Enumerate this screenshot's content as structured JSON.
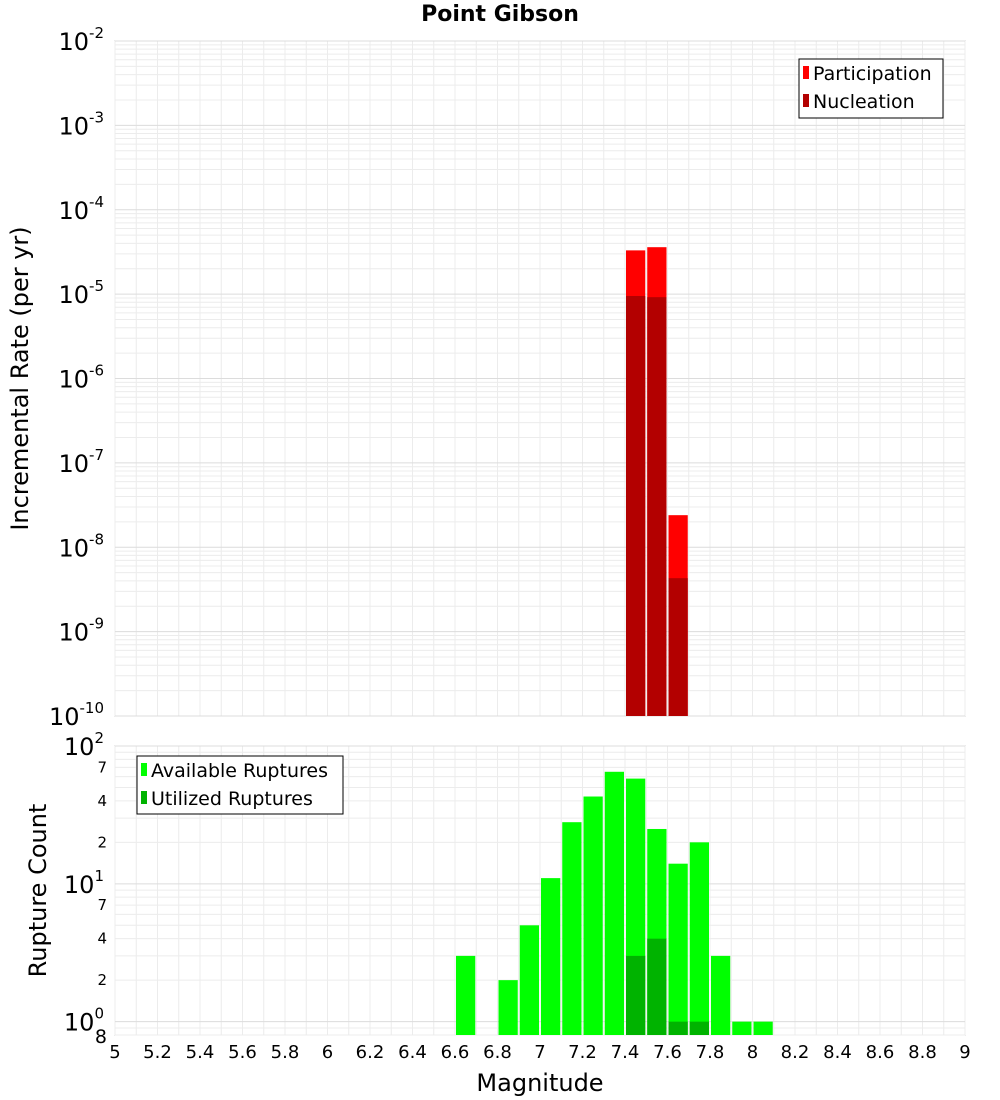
{
  "chart_data": [
    {
      "type": "bar",
      "title": "Point Gibson",
      "xlabel": "",
      "ylabel": "Incremental Rate (per yr)",
      "xlim": [
        5,
        9
      ],
      "ylim": [
        1e-10,
        0.01
      ],
      "yscale": "log",
      "y_tick_labels": [
        {
          "base": "10",
          "exp": "-10"
        },
        {
          "base": "10",
          "exp": "-9"
        },
        {
          "base": "10",
          "exp": "-8"
        },
        {
          "base": "10",
          "exp": "-7"
        },
        {
          "base": "10",
          "exp": "-6"
        },
        {
          "base": "10",
          "exp": "-5"
        },
        {
          "base": "10",
          "exp": "-4"
        },
        {
          "base": "10",
          "exp": "-3"
        },
        {
          "base": "10",
          "exp": "-2"
        }
      ],
      "grid": true,
      "legend_position": "top-right",
      "bar_width": 0.1,
      "series": [
        {
          "name": "Participation",
          "color": "#ff0000",
          "x": [
            7.45,
            7.55,
            7.65
          ],
          "values": [
            3.3e-05,
            3.6e-05,
            2.4e-08
          ]
        },
        {
          "name": "Nucleation",
          "color": "#b30000",
          "x": [
            7.45,
            7.55,
            7.65
          ],
          "values": [
            9.5e-06,
            9.2e-06,
            4.3e-09
          ]
        }
      ]
    },
    {
      "type": "bar",
      "title": "",
      "xlabel": "Magnitude",
      "ylabel": "Rupture Count",
      "xlim": [
        5,
        9
      ],
      "ylim": [
        0.8,
        100
      ],
      "yscale": "log",
      "x_tick_labels": [
        "5",
        "5.2",
        "5.4",
        "5.6",
        "5.8",
        "6",
        "6.2",
        "6.4",
        "6.6",
        "6.8",
        "7",
        "7.2",
        "7.4",
        "7.6",
        "7.8",
        "8",
        "8.2",
        "8.4",
        "8.6",
        "8.8",
        "9"
      ],
      "y_major_ticks": [
        {
          "value": 1,
          "base": "10",
          "exp": "0"
        },
        {
          "value": 10,
          "base": "10",
          "exp": "1"
        },
        {
          "value": 100,
          "base": "10",
          "exp": "2"
        }
      ],
      "y_minor_ticks": [
        {
          "value": 0.8,
          "label": "8"
        },
        {
          "value": 2,
          "label": "2"
        },
        {
          "value": 4,
          "label": "4"
        },
        {
          "value": 7,
          "label": "7"
        },
        {
          "value": 20,
          "label": "2"
        },
        {
          "value": 40,
          "label": "4"
        },
        {
          "value": 70,
          "label": "7"
        }
      ],
      "grid": true,
      "legend_position": "top-left",
      "bar_width": 0.1,
      "series": [
        {
          "name": "Available Ruptures",
          "color": "#00ff00",
          "x": [
            6.65,
            6.85,
            6.95,
            7.05,
            7.15,
            7.25,
            7.35,
            7.45,
            7.55,
            7.65,
            7.75,
            7.85,
            7.95,
            8.05
          ],
          "values": [
            3,
            2,
            5,
            11,
            28,
            43,
            65,
            58,
            25,
            14,
            20,
            3,
            1,
            1
          ]
        },
        {
          "name": "Utilized Ruptures",
          "color": "#00b300",
          "x": [
            7.45,
            7.55,
            7.65,
            7.75
          ],
          "values": [
            3,
            4,
            1,
            1
          ]
        }
      ]
    }
  ]
}
